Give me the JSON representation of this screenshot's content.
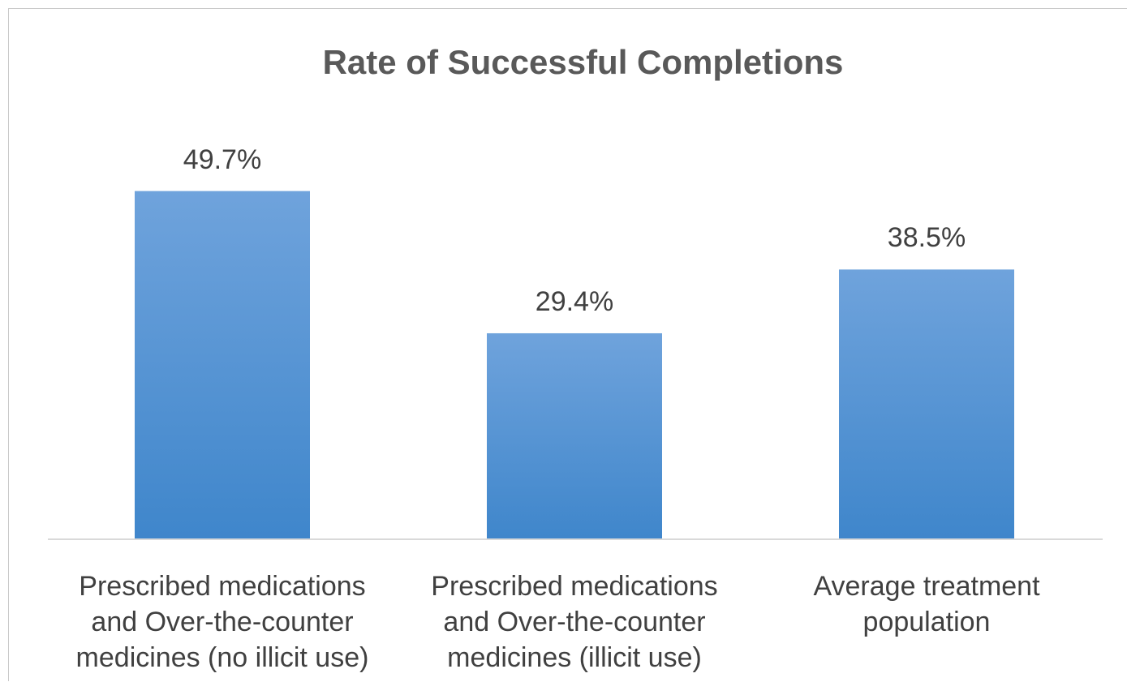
{
  "chart_data": {
    "type": "bar",
    "title": "Rate of Successful Completions",
    "categories": [
      "Prescribed medications\nand Over-the-counter\nmedicines (no illicit use)",
      "Prescribed medications\nand Over-the-counter\nmedicines (illicit use)",
      "Average treatment\npopulation"
    ],
    "values": [
      49.7,
      29.4,
      38.5
    ],
    "data_labels": [
      "49.7%",
      "29.4%",
      "38.5%"
    ],
    "ylim": [
      0,
      50
    ],
    "grid": false,
    "legend": "none",
    "bar_color_top": "#6fa3dc",
    "bar_color_bottom": "#3f86cb",
    "axis_color": "#d9d9d9"
  }
}
